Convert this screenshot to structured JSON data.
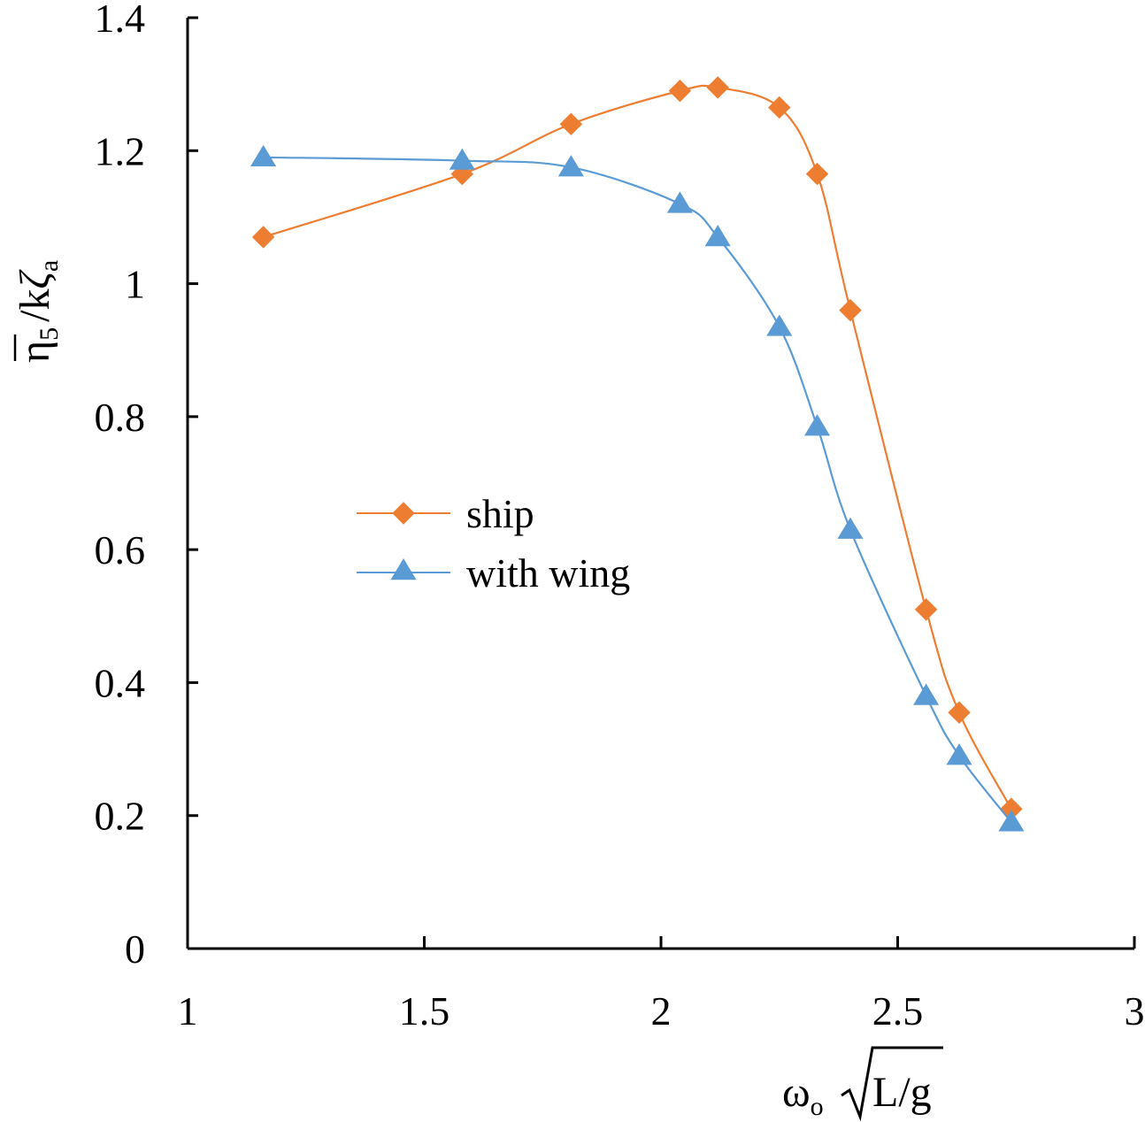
{
  "chart_data": {
    "type": "line",
    "xlim": [
      1,
      3
    ],
    "ylim": [
      0,
      1.4
    ],
    "x_ticks": [
      "1",
      "1.5",
      "2",
      "2.5",
      "3"
    ],
    "y_ticks": [
      "0",
      "0.2",
      "0.4",
      "0.6",
      "0.8",
      "1",
      "1.2",
      "1.4"
    ],
    "xlabel": {
      "omega": "ω",
      "omega_sub": "o",
      "radicand": "L/g"
    },
    "ylabel": {
      "eta": "η",
      "eta_sub": "5",
      "slash_k": "/k",
      "zeta": "ζ",
      "zeta_sub": "a"
    },
    "legend_position": "center-left",
    "grid": false,
    "series": [
      {
        "name": "ship",
        "color": "#ED7D31",
        "marker": "diamond",
        "x": [
          1.16,
          1.58,
          1.81,
          2.04,
          2.12,
          2.25,
          2.33,
          2.4,
          2.56,
          2.63,
          2.74
        ],
        "y": [
          1.07,
          1.165,
          1.24,
          1.29,
          1.295,
          1.265,
          1.165,
          0.96,
          0.51,
          0.355,
          0.21
        ]
      },
      {
        "name": "with wing",
        "color": "#5B9BD5",
        "marker": "triangle",
        "x": [
          1.16,
          1.58,
          1.81,
          2.04,
          2.12,
          2.25,
          2.33,
          2.4,
          2.56,
          2.63,
          2.74
        ],
        "y": [
          1.19,
          1.185,
          1.175,
          1.12,
          1.07,
          0.935,
          0.785,
          0.63,
          0.38,
          0.29,
          0.19
        ]
      }
    ]
  }
}
